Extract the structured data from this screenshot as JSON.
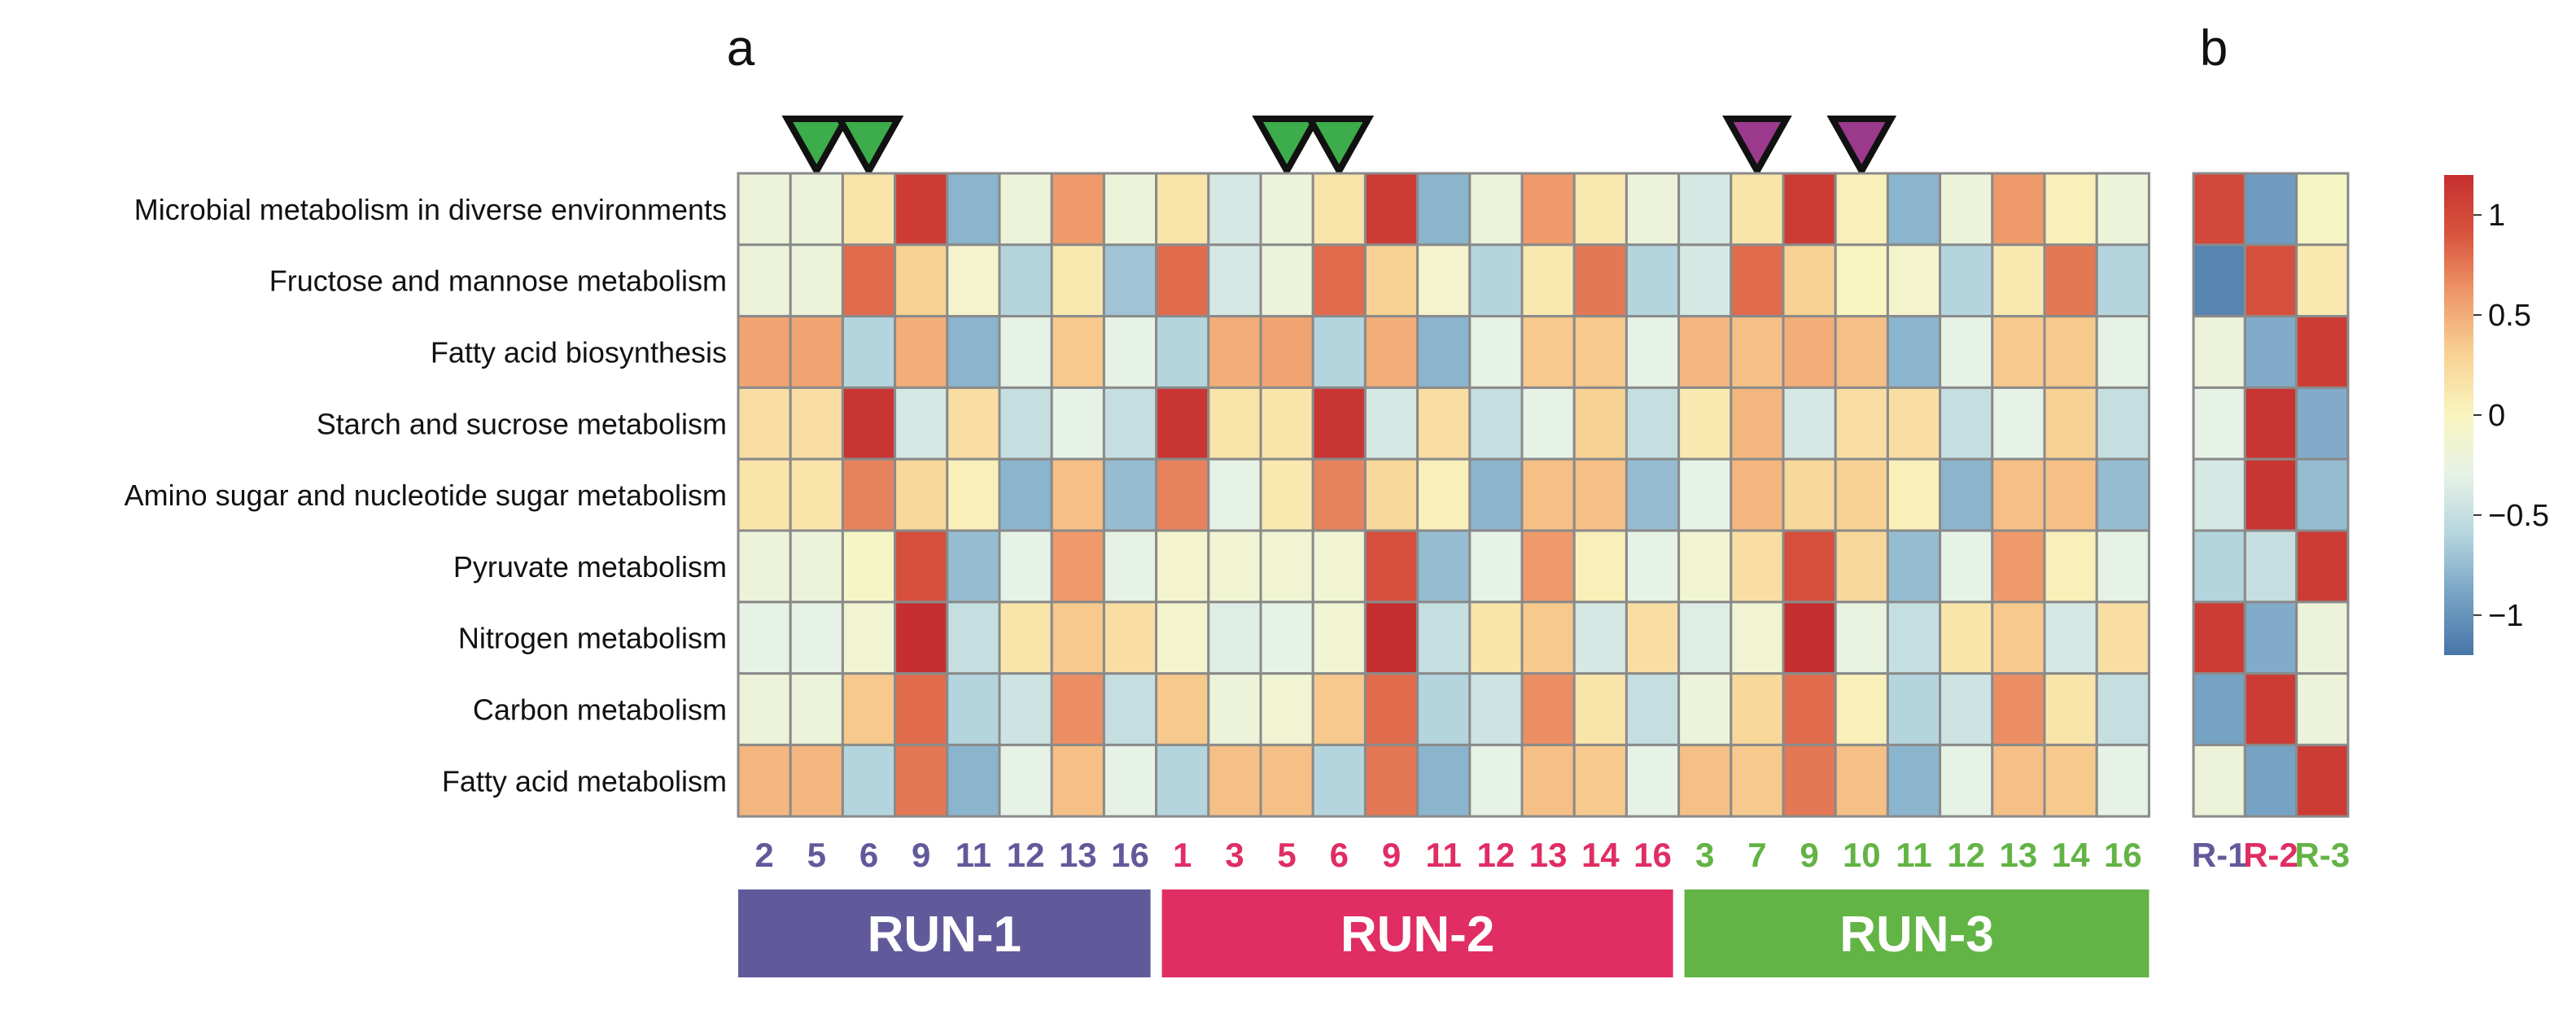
{
  "chart_data": [
    {
      "type": "heatmap",
      "panel_label": "a",
      "rows": [
        "Microbial metabolism in diverse environments",
        "Fructose and mannose metabolism",
        "Fatty acid biosynthesis",
        "Starch and sucrose metabolism",
        "Amino sugar and nucleotide sugar metabolism",
        "Pyruvate metabolism",
        "Nitrogen metabolism",
        "Carbon metabolism",
        "Fatty acid metabolism"
      ],
      "columns": [
        "2",
        "5",
        "6",
        "9",
        "11",
        "12",
        "13",
        "16",
        "1",
        "3",
        "5",
        "6",
        "9",
        "11",
        "12",
        "13",
        "14",
        "16",
        "3",
        "7",
        "9",
        "10",
        "11",
        "12",
        "13",
        "14",
        "16"
      ],
      "column_groups": [
        {
          "label": "RUN-1",
          "color": "#615a9a",
          "count": 8
        },
        {
          "label": "RUN-2",
          "color": "#e02d64",
          "count": 10
        },
        {
          "label": "RUN-3",
          "color": "#62b445",
          "count": 9
        }
      ],
      "markers": [
        {
          "column_index": 1,
          "color": "#3dac4a"
        },
        {
          "column_index": 2,
          "color": "#3dac4a"
        },
        {
          "column_index": 10,
          "color": "#3dac4a"
        },
        {
          "column_index": 11,
          "color": "#3dac4a"
        },
        {
          "column_index": 19,
          "color": "#9b3a8d"
        },
        {
          "column_index": 21,
          "color": "#9b3a8d"
        }
      ],
      "values": [
        [
          -0.2,
          -0.2,
          0.15,
          1.1,
          -0.8,
          -0.2,
          0.6,
          -0.2,
          0.15,
          -0.4,
          -0.2,
          0.15,
          1.1,
          -0.8,
          -0.2,
          0.6,
          0.1,
          -0.2,
          -0.4,
          0.15,
          1.1,
          0.05,
          -0.8,
          -0.2,
          0.6,
          0.05,
          -0.2
        ],
        [
          -0.2,
          -0.2,
          0.8,
          0.3,
          -0.1,
          -0.6,
          0.1,
          -0.7,
          0.8,
          -0.4,
          -0.2,
          0.8,
          0.3,
          -0.1,
          -0.6,
          0.1,
          0.75,
          -0.6,
          -0.4,
          0.8,
          0.3,
          0.0,
          -0.1,
          -0.6,
          0.1,
          0.75,
          -0.6
        ],
        [
          0.55,
          0.55,
          -0.6,
          0.5,
          -0.8,
          -0.3,
          0.35,
          -0.3,
          -0.6,
          0.5,
          0.55,
          -0.6,
          0.5,
          -0.8,
          -0.3,
          0.35,
          0.35,
          -0.3,
          0.45,
          0.4,
          0.5,
          0.4,
          -0.8,
          -0.3,
          0.35,
          0.35,
          -0.3
        ],
        [
          0.2,
          0.2,
          1.15,
          -0.4,
          0.2,
          -0.5,
          -0.3,
          -0.5,
          1.15,
          0.15,
          0.15,
          1.15,
          -0.4,
          0.2,
          -0.5,
          -0.3,
          0.3,
          -0.5,
          0.1,
          0.45,
          -0.4,
          0.2,
          0.2,
          -0.5,
          -0.3,
          0.3,
          -0.5
        ],
        [
          0.15,
          0.15,
          0.7,
          0.25,
          0.05,
          -0.8,
          0.4,
          -0.75,
          0.7,
          -0.3,
          0.1,
          0.7,
          0.25,
          0.05,
          -0.8,
          0.4,
          0.4,
          -0.75,
          -0.3,
          0.45,
          0.25,
          0.3,
          0.05,
          -0.8,
          0.4,
          0.4,
          -0.75
        ],
        [
          -0.2,
          -0.2,
          -0.05,
          0.95,
          -0.75,
          -0.3,
          0.6,
          -0.3,
          -0.1,
          -0.15,
          -0.15,
          -0.15,
          0.95,
          -0.75,
          -0.3,
          0.6,
          0.05,
          -0.3,
          -0.15,
          0.2,
          0.95,
          0.25,
          -0.75,
          -0.3,
          0.6,
          0.05,
          -0.3
        ],
        [
          -0.3,
          -0.3,
          -0.15,
          1.2,
          -0.5,
          0.15,
          0.35,
          0.2,
          -0.1,
          -0.35,
          -0.3,
          -0.15,
          1.2,
          -0.5,
          0.15,
          0.35,
          -0.4,
          0.2,
          -0.35,
          -0.15,
          1.2,
          -0.25,
          -0.5,
          0.15,
          0.35,
          -0.4,
          0.2
        ],
        [
          -0.2,
          -0.2,
          0.35,
          0.8,
          -0.6,
          -0.45,
          0.65,
          -0.5,
          0.35,
          -0.2,
          -0.15,
          0.35,
          0.8,
          -0.6,
          -0.45,
          0.65,
          0.15,
          -0.5,
          -0.2,
          0.25,
          0.8,
          0.05,
          -0.6,
          -0.45,
          0.65,
          0.15,
          -0.5
        ],
        [
          0.45,
          0.45,
          -0.6,
          0.75,
          -0.8,
          -0.3,
          0.4,
          -0.3,
          -0.6,
          0.4,
          0.4,
          -0.6,
          0.75,
          -0.8,
          -0.3,
          0.4,
          0.35,
          -0.3,
          0.4,
          0.35,
          0.75,
          0.4,
          -0.8,
          -0.3,
          0.4,
          0.35,
          -0.3
        ]
      ]
    },
    {
      "type": "heatmap",
      "panel_label": "b",
      "rows": [
        "Microbial metabolism in diverse environments",
        "Fructose and mannose metabolism",
        "Fatty acid biosynthesis",
        "Starch and sucrose metabolism",
        "Amino sugar and nucleotide sugar metabolism",
        "Pyruvate metabolism",
        "Nitrogen metabolism",
        "Carbon metabolism",
        "Fatty acid metabolism"
      ],
      "columns": [
        "R-1",
        "R-2",
        "R-3"
      ],
      "column_colors": [
        "#615a9a",
        "#e02d64",
        "#62b445"
      ],
      "values": [
        [
          1.0,
          -0.95,
          -0.05
        ],
        [
          -1.1,
          0.95,
          0.1
        ],
        [
          -0.2,
          -0.85,
          1.1
        ],
        [
          -0.3,
          1.15,
          -0.85
        ],
        [
          -0.4,
          1.15,
          -0.75
        ],
        [
          -0.6,
          -0.5,
          1.1
        ],
        [
          1.1,
          -0.85,
          -0.2
        ],
        [
          -0.9,
          1.1,
          -0.2
        ],
        [
          -0.2,
          -0.9,
          1.1
        ]
      ]
    }
  ],
  "color_scale": {
    "min": -1.2,
    "max": 1.2,
    "stops": [
      "#4875a8",
      "#76a3c4",
      "#b5d5de",
      "#e6f2e6",
      "#f9f5c0",
      "#f8d294",
      "#ef9a6a",
      "#d8553f",
      "#c62f2f"
    ],
    "tick_values": [
      1,
      0.5,
      0,
      -0.5,
      -1
    ],
    "tick_labels": [
      "1",
      "0.5",
      "0",
      "−0.5",
      "−1"
    ]
  }
}
